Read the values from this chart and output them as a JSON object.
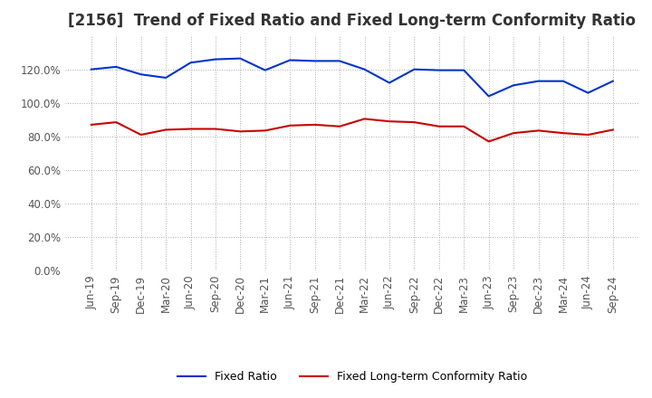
{
  "title": "[2156]  Trend of Fixed Ratio and Fixed Long-term Conformity Ratio",
  "x_labels": [
    "Jun-19",
    "Sep-19",
    "Dec-19",
    "Mar-20",
    "Jun-20",
    "Sep-20",
    "Dec-20",
    "Mar-21",
    "Jun-21",
    "Sep-21",
    "Dec-21",
    "Mar-22",
    "Jun-22",
    "Sep-22",
    "Dec-22",
    "Mar-23",
    "Jun-23",
    "Sep-23",
    "Dec-23",
    "Mar-24",
    "Jun-24",
    "Sep-24"
  ],
  "fixed_ratio": [
    120.0,
    121.5,
    117.0,
    115.0,
    124.0,
    126.0,
    126.5,
    119.5,
    125.5,
    125.0,
    125.0,
    120.0,
    112.0,
    120.0,
    119.5,
    119.5,
    104.0,
    110.5,
    113.0,
    113.0,
    106.0,
    113.0
  ],
  "fixed_lt_ratio": [
    87.0,
    88.5,
    81.0,
    84.0,
    84.5,
    84.5,
    83.0,
    83.5,
    86.5,
    87.0,
    86.0,
    90.5,
    89.0,
    88.5,
    86.0,
    86.0,
    77.0,
    82.0,
    83.5,
    82.0,
    81.0,
    84.0
  ],
  "fixed_ratio_color": "#0033cc",
  "fixed_lt_ratio_color": "#cc0000",
  "background_color": "#ffffff",
  "grid_color": "#aaaaaa",
  "ylim": [
    0,
    140
  ],
  "yticks": [
    0,
    20,
    40,
    60,
    80,
    100,
    120
  ],
  "legend_fixed_ratio": "Fixed Ratio",
  "legend_fixed_lt_ratio": "Fixed Long-term Conformity Ratio",
  "title_fontsize": 12,
  "axis_fontsize": 8.5,
  "legend_fontsize": 9
}
